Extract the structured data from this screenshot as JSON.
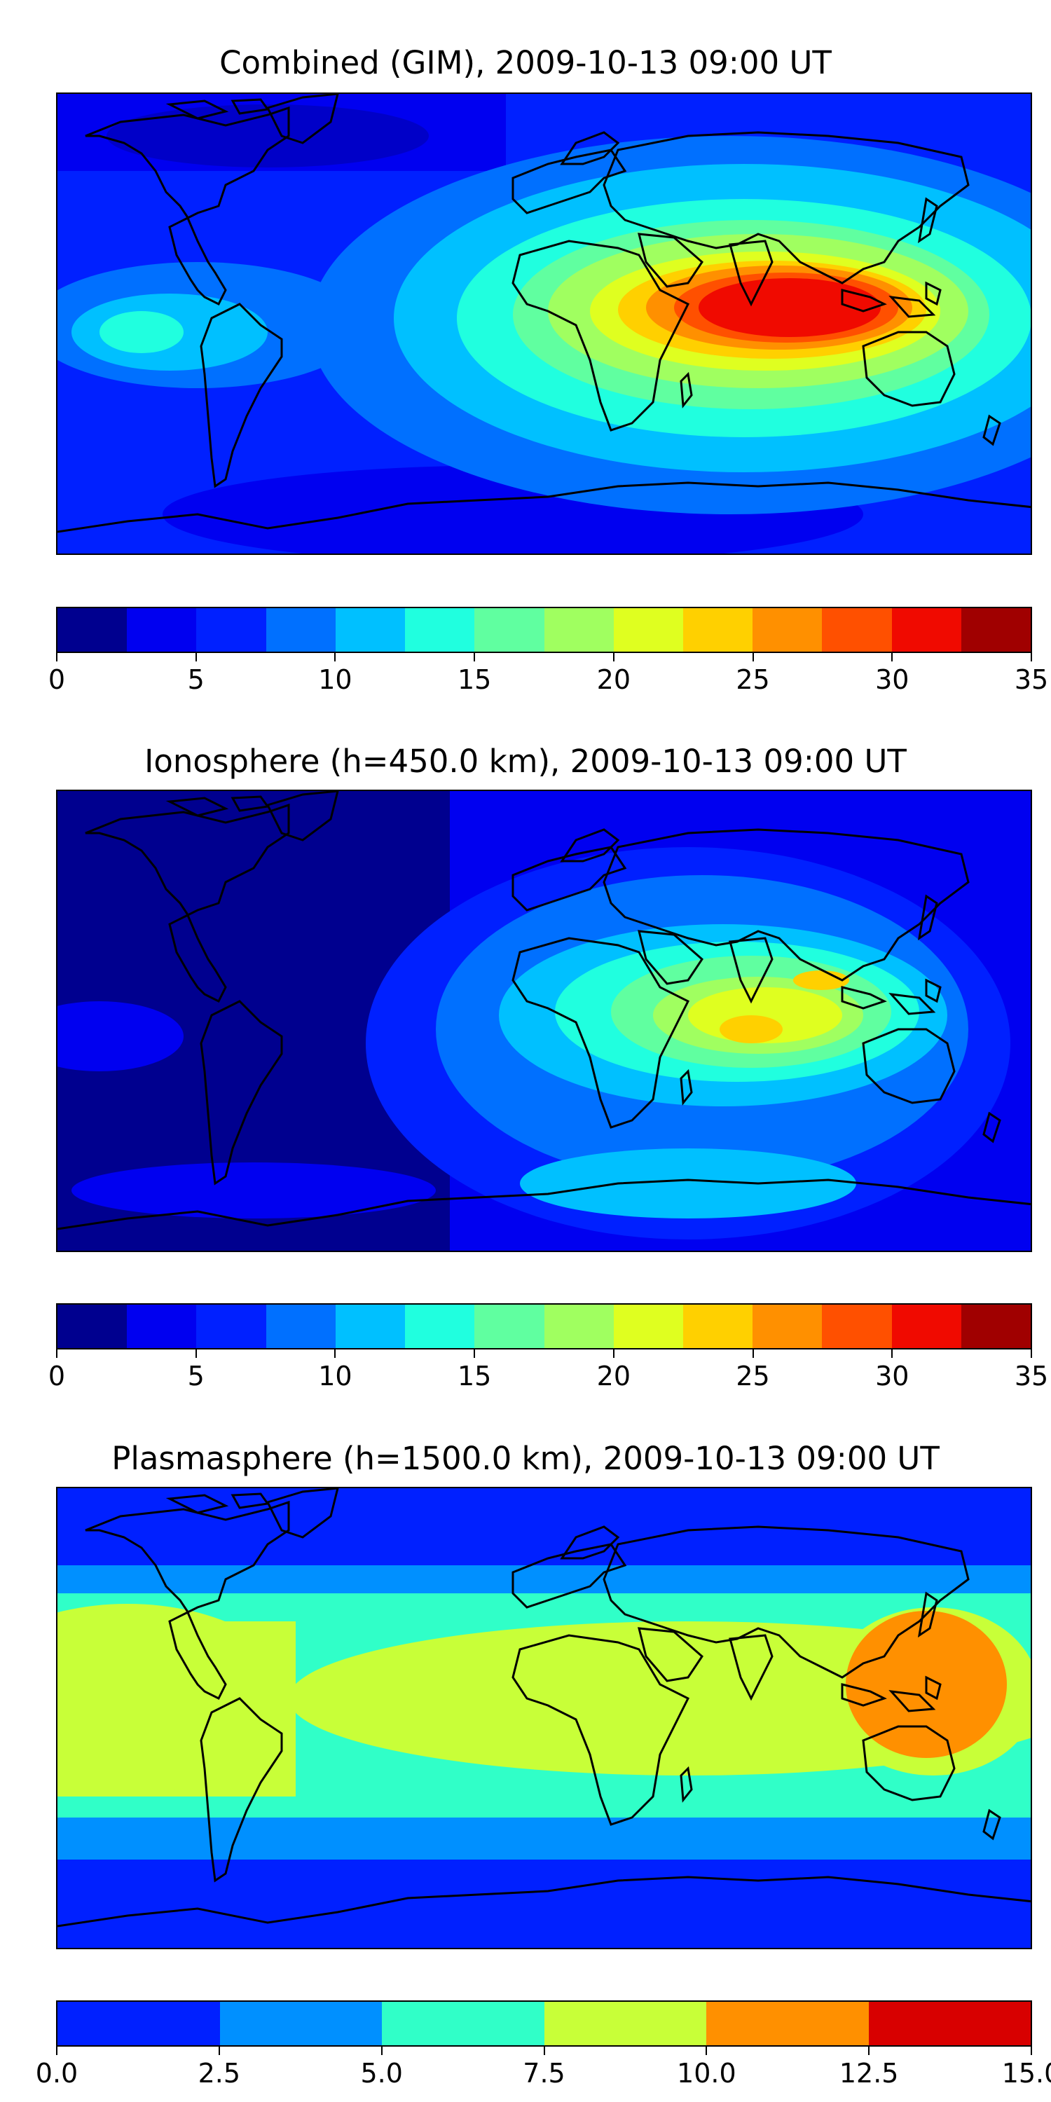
{
  "panels": [
    {
      "title": "Combined (GIM), 2009-10-13 09:00 UT",
      "colorbar": {
        "colors": [
          "#00008f",
          "#0000f0",
          "#0020ff",
          "#0070ff",
          "#00c0ff",
          "#20ffdf",
          "#60ffa0",
          "#a0ff60",
          "#dfff20",
          "#ffd000",
          "#ff9000",
          "#ff5000",
          "#f00a00",
          "#a00000"
        ],
        "ticks": [
          "0",
          "5",
          "10",
          "15",
          "20",
          "25",
          "30",
          "35"
        ]
      }
    },
    {
      "title": "Ionosphere  (h=450.0 km), 2009-10-13 09:00 UT",
      "colorbar": {
        "colors": [
          "#00008f",
          "#0000f0",
          "#0020ff",
          "#0070ff",
          "#00c0ff",
          "#20ffdf",
          "#60ffa0",
          "#a0ff60",
          "#dfff20",
          "#ffd000",
          "#ff9000",
          "#ff5000",
          "#f00a00",
          "#a00000"
        ],
        "ticks": [
          "0",
          "5",
          "10",
          "15",
          "20",
          "25",
          "30",
          "35"
        ]
      }
    },
    {
      "title": "Plasmasphere (h=1500.0 km), 2009-10-13 09:00 UT",
      "colorbar": {
        "colors": [
          "#0020ff",
          "#0090ff",
          "#30ffc8",
          "#c8ff38",
          "#ff9000",
          "#d80000"
        ],
        "ticks": [
          "0.0",
          "2.5",
          "5.0",
          "7.5",
          "10.0",
          "12.5",
          "15.0"
        ]
      }
    }
  ]
}
